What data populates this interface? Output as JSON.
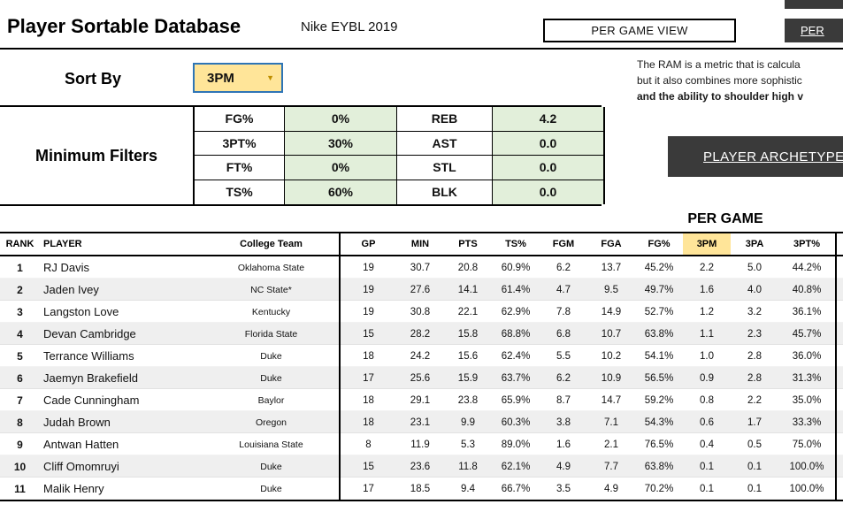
{
  "page": {
    "title": "Player Sortable Database",
    "subtitle": "Nike EYBL 2019"
  },
  "buttons": {
    "per_game_view": "PER GAME VIEW",
    "per_top_right": "PER",
    "player_archetypes": "PLAYER ARCHETYPES"
  },
  "sort": {
    "label": "Sort By",
    "value": "3PM"
  },
  "ram_note": {
    "line1": "The RAM is a metric that is calcula",
    "line2": "but it also combines more sophistic",
    "line3": "and the ability to shoulder high v"
  },
  "filters": {
    "label": "Minimum Filters",
    "rows": [
      [
        "FG%",
        "0%",
        "REB",
        "4.2"
      ],
      [
        "3PT%",
        "30%",
        "AST",
        "0.0"
      ],
      [
        "FT%",
        "0%",
        "STL",
        "0.0"
      ],
      [
        "TS%",
        "60%",
        "BLK",
        "0.0"
      ]
    ]
  },
  "table": {
    "section_title": "PER GAME",
    "highlight_column": "3PM",
    "columns": [
      "RANK",
      "PLAYER",
      "College Team",
      "GP",
      "MIN",
      "PTS",
      "TS%",
      "FGM",
      "FGA",
      "FG%",
      "3PM",
      "3PA",
      "3PT%"
    ],
    "rows": [
      [
        "1",
        "RJ Davis",
        "Oklahoma State",
        "19",
        "30.7",
        "20.8",
        "60.9%",
        "6.2",
        "13.7",
        "45.2%",
        "2.2",
        "5.0",
        "44.2%"
      ],
      [
        "2",
        "Jaden Ivey",
        "NC State*",
        "19",
        "27.6",
        "14.1",
        "61.4%",
        "4.7",
        "9.5",
        "49.7%",
        "1.6",
        "4.0",
        "40.8%"
      ],
      [
        "3",
        "Langston Love",
        "Kentucky",
        "19",
        "30.8",
        "22.1",
        "62.9%",
        "7.8",
        "14.9",
        "52.7%",
        "1.2",
        "3.2",
        "36.1%"
      ],
      [
        "4",
        "Devan Cambridge",
        "Florida State",
        "15",
        "28.2",
        "15.8",
        "68.8%",
        "6.8",
        "10.7",
        "63.8%",
        "1.1",
        "2.3",
        "45.7%"
      ],
      [
        "5",
        "Terrance Williams",
        "Duke",
        "18",
        "24.2",
        "15.6",
        "62.4%",
        "5.5",
        "10.2",
        "54.1%",
        "1.0",
        "2.8",
        "36.0%"
      ],
      [
        "6",
        "Jaemyn Brakefield",
        "Duke",
        "17",
        "25.6",
        "15.9",
        "63.7%",
        "6.2",
        "10.9",
        "56.5%",
        "0.9",
        "2.8",
        "31.3%"
      ],
      [
        "7",
        "Cade Cunningham",
        "Baylor",
        "18",
        "29.1",
        "23.8",
        "65.9%",
        "8.7",
        "14.7",
        "59.2%",
        "0.8",
        "2.2",
        "35.0%"
      ],
      [
        "8",
        "Judah Brown",
        "Oregon",
        "18",
        "23.1",
        "9.9",
        "60.3%",
        "3.8",
        "7.1",
        "54.3%",
        "0.6",
        "1.7",
        "33.3%"
      ],
      [
        "9",
        "Antwan Hatten",
        "Louisiana State",
        "8",
        "11.9",
        "5.3",
        "89.0%",
        "1.6",
        "2.1",
        "76.5%",
        "0.4",
        "0.5",
        "75.0%"
      ],
      [
        "10",
        "Cliff Omomruyi",
        "Duke",
        "15",
        "23.6",
        "11.8",
        "62.1%",
        "4.9",
        "7.7",
        "63.8%",
        "0.1",
        "0.1",
        "100.0%"
      ],
      [
        "11",
        "Malik Henry",
        "Duke",
        "17",
        "18.5",
        "9.4",
        "66.7%",
        "3.5",
        "4.9",
        "70.2%",
        "0.1",
        "0.1",
        "100.0%"
      ]
    ]
  },
  "colors": {
    "accent_yellow": "#FFE599",
    "filter_green": "#E2EFDA",
    "dark_button": "#3A3A3A",
    "row_alt": "#EFEFEF",
    "dropdown_border_blue": "#2E75B6"
  }
}
